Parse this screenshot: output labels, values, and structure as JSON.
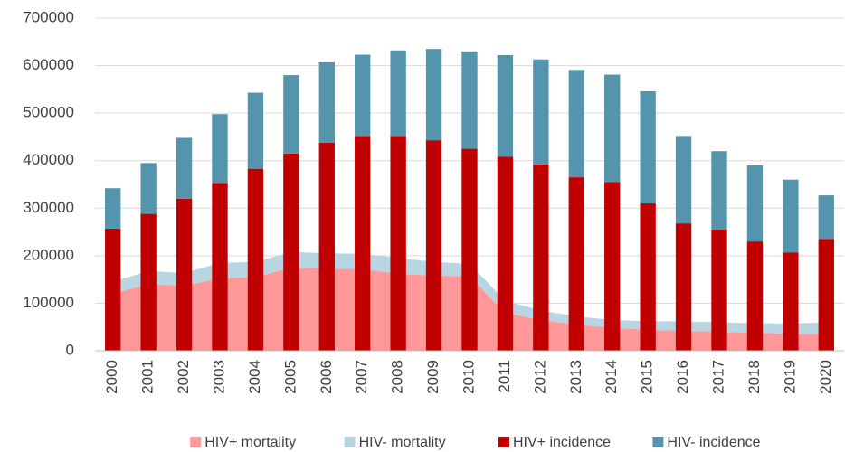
{
  "chart_data": {
    "type": "bar",
    "categories": [
      "2000",
      "2001",
      "2002",
      "2003",
      "2004",
      "2005",
      "2006",
      "2007",
      "2008",
      "2009",
      "2010",
      "2011",
      "2012",
      "2013",
      "2014",
      "2015",
      "2016",
      "2017",
      "2018",
      "2019",
      "2020"
    ],
    "series": [
      {
        "name": "HIV+ mortality",
        "color": "#ff9999",
        "type": "area",
        "values": [
          120000,
          140000,
          137000,
          153000,
          155000,
          175000,
          173000,
          172000,
          162000,
          158000,
          157000,
          80000,
          65000,
          55000,
          48000,
          44000,
          42000,
          40000,
          38000,
          36000,
          35000
        ]
      },
      {
        "name": "HIV- mortality",
        "color": "#b9d5e1",
        "type": "area",
        "values": [
          25000,
          28000,
          26000,
          32000,
          32000,
          33000,
          32000,
          32000,
          33000,
          29000,
          26000,
          25000,
          20000,
          17000,
          17000,
          18000,
          20000,
          20000,
          20000,
          21000,
          25000
        ]
      },
      {
        "name": "HIV+ incidence",
        "color": "#c00000",
        "type": "bar",
        "values": [
          257000,
          288000,
          320000,
          353000,
          383000,
          415000,
          438000,
          452000,
          452000,
          443000,
          425000,
          408000,
          392000,
          365000,
          355000,
          310000,
          268000,
          255000,
          230000,
          207000,
          235000
        ]
      },
      {
        "name": "HIV- incidence",
        "color": "#5594ad",
        "type": "bar",
        "values": [
          85000,
          107000,
          128000,
          145000,
          160000,
          165000,
          169000,
          171000,
          180000,
          192000,
          205000,
          214000,
          221000,
          226000,
          226000,
          236000,
          184000,
          165000,
          160000,
          153000,
          92000
        ]
      }
    ],
    "ylim": [
      0,
      700000
    ],
    "yticks": [
      0,
      100000,
      200000,
      300000,
      400000,
      500000,
      600000,
      700000
    ],
    "grid": true
  }
}
